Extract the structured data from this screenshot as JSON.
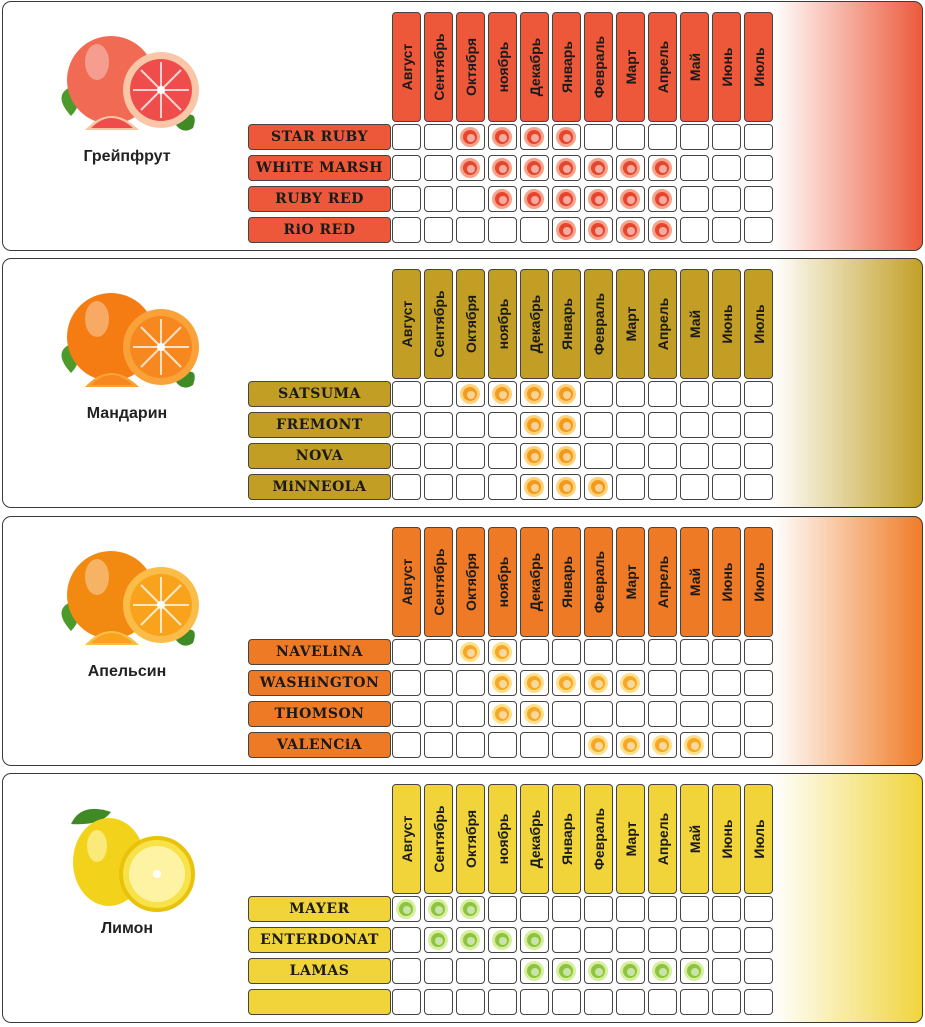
{
  "months": [
    "Август",
    "Сентябрь",
    "Октября",
    "ноябрь",
    "Декабрь",
    "Январь",
    "Февраль",
    "Март",
    "Апрель",
    "Май",
    "Июнь",
    "Июль"
  ],
  "sections": [
    {
      "fruit": "Грейпфрут",
      "icon": "grapefruit-icon",
      "color": "#ec5839",
      "dot_color": "#e8452d",
      "dot_ring": "#f7a28a",
      "varieties": [
        {
          "name": "STAR RUBY",
          "months": [
            2,
            3,
            4,
            5
          ]
        },
        {
          "name": "WHiTE MARSH",
          "months": [
            2,
            3,
            4,
            5,
            6,
            7,
            8
          ]
        },
        {
          "name": "RUBY RED",
          "months": [
            3,
            4,
            5,
            6,
            7,
            8
          ]
        },
        {
          "name": "RiO RED",
          "months": [
            5,
            6,
            7,
            8
          ]
        }
      ]
    },
    {
      "fruit": "Мандарин",
      "icon": "mandarin-icon",
      "color": "#c29e24",
      "dot_color": "#f39a1a",
      "dot_ring": "#ffd27a",
      "varieties": [
        {
          "name": "SATSUMA",
          "months": [
            2,
            3,
            4,
            5
          ]
        },
        {
          "name": "FREMONT",
          "months": [
            4,
            5
          ]
        },
        {
          "name": "NOVA",
          "months": [
            4,
            5
          ]
        },
        {
          "name": "MiNNEOLA",
          "months": [
            4,
            5,
            6
          ]
        }
      ]
    },
    {
      "fruit": "Апельсин",
      "icon": "orange-icon",
      "color": "#ef7a25",
      "dot_color": "#f6a823",
      "dot_ring": "#ffe08a",
      "varieties": [
        {
          "name": "NAVELiNA",
          "months": [
            2,
            3
          ]
        },
        {
          "name": "WASHiNGTON",
          "months": [
            3,
            4,
            5,
            6,
            7
          ]
        },
        {
          "name": "THOMSON",
          "months": [
            3,
            4
          ]
        },
        {
          "name": "VALENCiA",
          "months": [
            6,
            7,
            8,
            9
          ]
        }
      ]
    },
    {
      "fruit": "Лимон",
      "icon": "lemon-icon",
      "color": "#f0d43a",
      "dot_color": "#8bc43f",
      "dot_ring": "#d7ef9a",
      "varieties": [
        {
          "name": "MAYER",
          "months": [
            0,
            1,
            2
          ]
        },
        {
          "name": "ENTERDONAT",
          "months": [
            1,
            2,
            3,
            4
          ]
        },
        {
          "name": "LAMAS",
          "months": [
            4,
            5,
            6,
            7,
            8,
            9
          ]
        },
        {
          "name": "",
          "months": []
        }
      ]
    }
  ]
}
